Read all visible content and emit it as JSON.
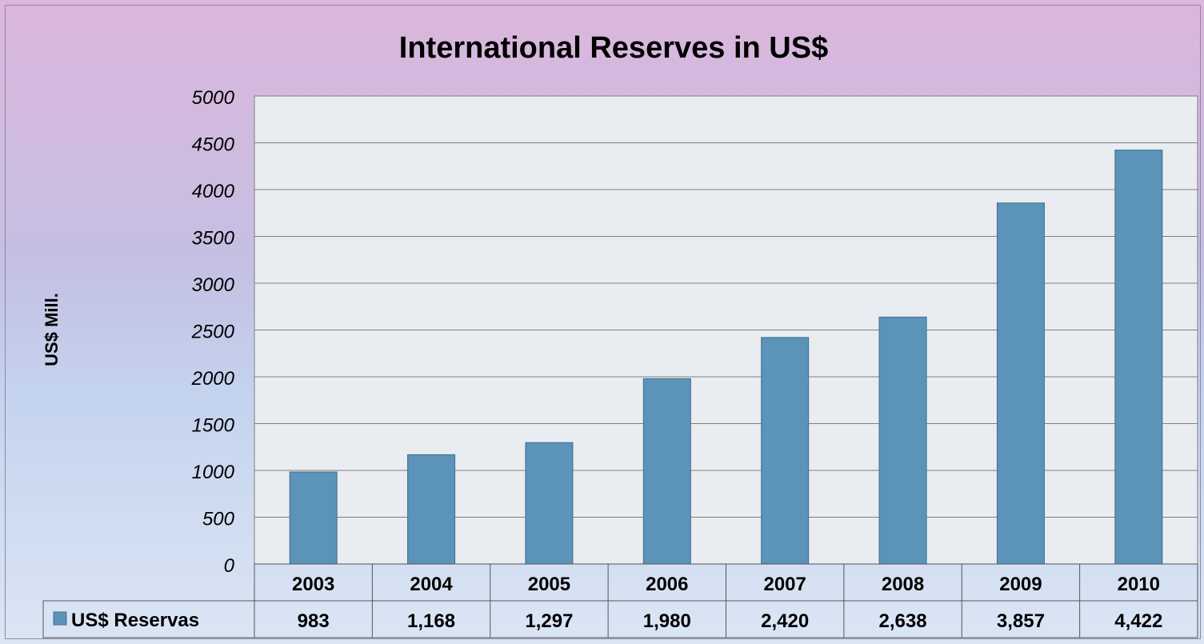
{
  "chart_data": {
    "type": "bar",
    "title": "International Reserves in US$",
    "ylabel": "US$ Mill.",
    "xlabel": "",
    "ylim": [
      0,
      5000
    ],
    "y_ticks": [
      "0",
      "500",
      "1000",
      "1500",
      "2000",
      "2500",
      "3000",
      "3500",
      "4000",
      "4500",
      "5000"
    ],
    "categories": [
      "2003",
      "2004",
      "2005",
      "2006",
      "2007",
      "2008",
      "2009",
      "2010"
    ],
    "series": [
      {
        "name": "US$ Reservas",
        "values": [
          983,
          1168,
          1297,
          1980,
          2420,
          2638,
          3857,
          4422
        ],
        "labels": [
          "983",
          "1,168",
          "1,297",
          "1,980",
          "2,420",
          "2,638",
          "3,857",
          "4,422"
        ],
        "color": "#5b93b9"
      }
    ],
    "grid": true,
    "legend": "data-table",
    "plot_background": "#e9ecf0"
  }
}
